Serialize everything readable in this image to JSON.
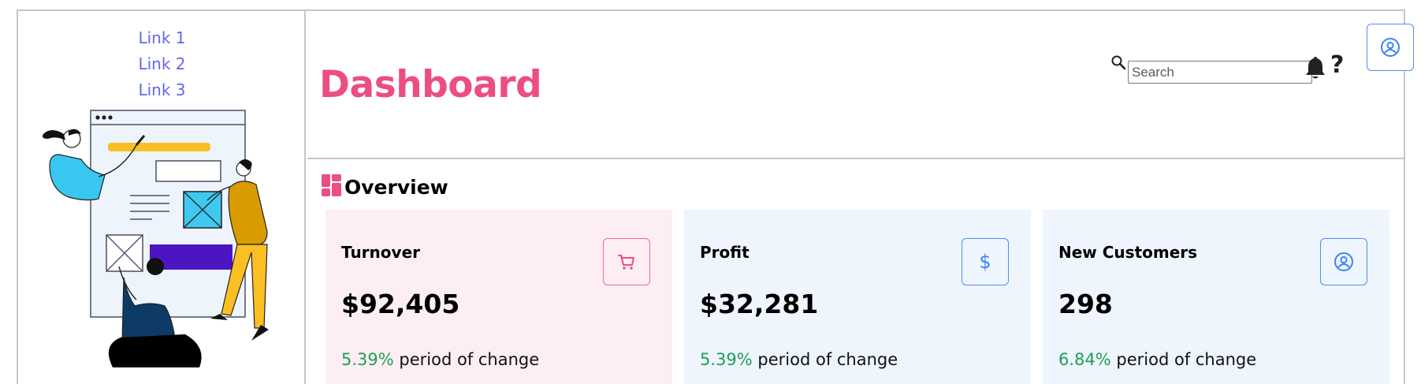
{
  "sidebar": {
    "links": [
      "Link 1",
      "Link 2",
      "Link 3"
    ],
    "illustration_icon": "web-design-team-illustration"
  },
  "header": {
    "title": "Dashboard",
    "search": {
      "placeholder": "Search",
      "value": ""
    },
    "icons": [
      "search-icon",
      "bell-icon",
      "help-icon",
      "user-circle-icon"
    ],
    "help_label": "?"
  },
  "overview": {
    "title": "Overview",
    "icon": "dashboard-grid-icon",
    "cards": [
      {
        "label": "Turnover",
        "value": "$92,405",
        "change_pct": "5.39%",
        "change_text": " period of change",
        "icon": "cart-icon"
      },
      {
        "label": "Profit",
        "value": "$32,281",
        "change_pct": "5.39%",
        "change_text": " period of change",
        "icon": "dollar-icon",
        "icon_text": "$"
      },
      {
        "label": "New Customers",
        "value": "298",
        "change_pct": "6.84%",
        "change_text": " period of change",
        "icon": "user-circle-icon"
      }
    ]
  },
  "colors": {
    "title_pink": "#ec4d85",
    "link": "#6366f1",
    "positive": "#1e9e57",
    "card_pink": "#fdeef3",
    "card_blue": "#eef5fd",
    "accent_blue": "#4f8ef7"
  }
}
